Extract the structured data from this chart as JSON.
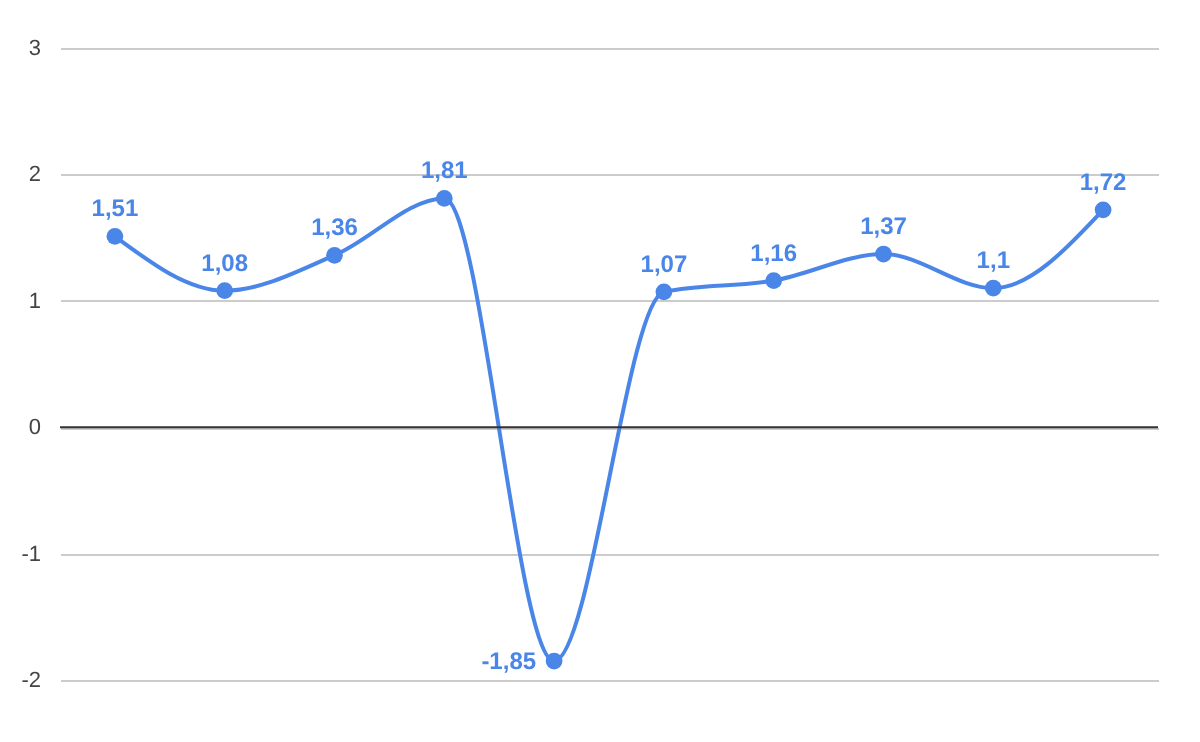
{
  "chart_data": {
    "type": "line",
    "categories": [
      null,
      null,
      null,
      null,
      null,
      null,
      null,
      null,
      null,
      null
    ],
    "series": [
      {
        "color": "#4a86e8",
        "values": [
          1.51,
          1.08,
          1.36,
          1.81,
          -1.85,
          1.07,
          1.16,
          1.37,
          1.1,
          1.72
        ],
        "value_labels": [
          "1,51",
          "1,08",
          "1,36",
          "1,81",
          "-1,85",
          "1,07",
          "1,16",
          "1,37",
          "1,1",
          "1,72"
        ]
      }
    ],
    "ylim": [
      -2,
      3
    ],
    "yticks": [
      -2,
      -1,
      0,
      1,
      2,
      3
    ],
    "grid": "y",
    "marker": "circle",
    "line_style": "solid",
    "tick_labels": "y",
    "ref_lines": [
      {
        "axis": "y",
        "value": 0,
        "color": "#333333"
      }
    ]
  }
}
